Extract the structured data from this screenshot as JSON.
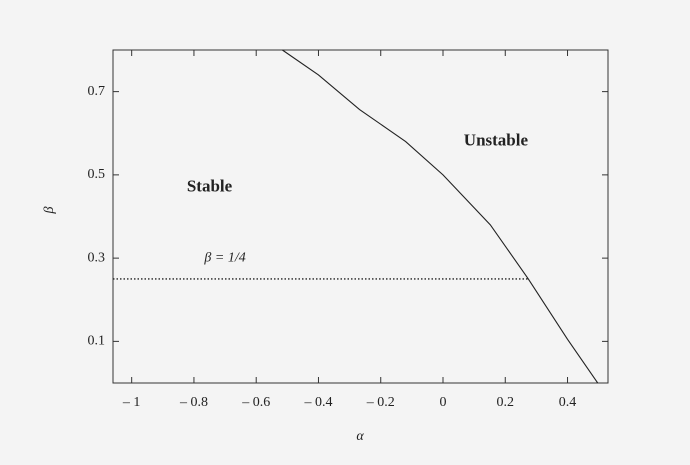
{
  "chart_data": {
    "type": "line",
    "x_label": "α",
    "y_label": "β",
    "xlim": [
      -1.06,
      0.53
    ],
    "ylim": [
      0,
      0.8
    ],
    "xticks": [
      {
        "value": -1,
        "label": "– 1"
      },
      {
        "value": -0.8,
        "label": "– 0.8"
      },
      {
        "value": -0.6,
        "label": "– 0.6"
      },
      {
        "value": -0.4,
        "label": "– 0.4"
      },
      {
        "value": -0.2,
        "label": "– 0.2"
      },
      0,
      0.2,
      0.4
    ],
    "yticks": [
      0.1,
      0.3,
      0.5,
      0.7
    ],
    "series": [
      {
        "x": [
          -0.516,
          -0.4,
          -0.268,
          -0.12,
          0,
          0.152,
          0.274,
          0.4,
          0.497
        ],
        "values": [
          0.8,
          0.74,
          0.657,
          0.58,
          0.5,
          0.38,
          0.25,
          0.105,
          0
        ],
        "color": "#222222",
        "style": "solid"
      },
      {
        "x": [
          -1.06,
          0.274
        ],
        "values": [
          0.25,
          0.25
        ],
        "color": "#222222",
        "style": "dotted"
      }
    ],
    "annotations": [
      {
        "text": "Stable",
        "x": -0.75,
        "y": 0.47
      },
      {
        "text": "Unstable",
        "x": 0.17,
        "y": 0.58
      },
      {
        "text": "β = 1/4",
        "x": -0.7,
        "y": 0.3
      }
    ]
  }
}
